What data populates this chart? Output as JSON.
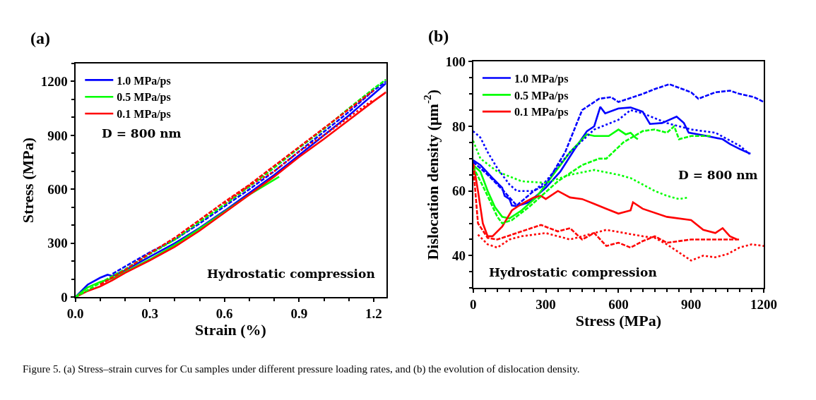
{
  "chart_data": [
    {
      "type": "line",
      "title": "(a)",
      "xlabel": "Strain (%)",
      "ylabel": "Stress (MPa)",
      "xlim": [
        0,
        1.25
      ],
      "xticks": [
        {
          "value": 0,
          "label": "0.0"
        },
        0.3,
        0.6,
        0.9,
        1.2
      ],
      "ylim": [
        0,
        1300
      ],
      "yticks": [
        0,
        300,
        600,
        900,
        1200
      ],
      "legend": "top left",
      "marker": "none",
      "annotations": [
        "D = 800 nm",
        "Hydrostatic compression",
        "Figure 5. (a) Stress–strain curves for Cu samples under different pressure loading rates, and (b) the evolution of dislocation density."
      ],
      "series": [
        {
          "name": "1.0 MPa/ps",
          "color": "#0000ff",
          "line_style": "solid",
          "x": [
            0,
            0.05,
            0.1,
            0.13,
            0.15,
            0.2,
            0.3,
            0.4,
            0.5,
            0.6,
            0.7,
            0.8,
            0.9,
            1.0,
            1.1,
            1.2,
            1.25
          ],
          "values": [
            0,
            70,
            108,
            125,
            118,
            150,
            225,
            300,
            385,
            480,
            580,
            680,
            790,
            900,
            1010,
            1130,
            1190
          ]
        },
        {
          "name": "0.5 MPa/ps",
          "color": "#00ff00",
          "line_style": "solid",
          "x": [
            0,
            0.05,
            0.1,
            0.15,
            0.2,
            0.3,
            0.4,
            0.5,
            0.6,
            0.7,
            0.82
          ],
          "values": [
            0,
            55,
            85,
            105,
            140,
            210,
            290,
            380,
            475,
            570,
            670
          ]
        },
        {
          "name": "0.1 MPa/ps",
          "color": "#ff0000",
          "line_style": "solid",
          "x": [
            0,
            0.05,
            0.1,
            0.15,
            0.2,
            0.3,
            0.4,
            0.5,
            0.6,
            0.7,
            0.8,
            0.9,
            1.0,
            1.1,
            1.2,
            1.25
          ],
          "values": [
            0,
            35,
            60,
            95,
            135,
            205,
            280,
            370,
            470,
            570,
            670,
            780,
            880,
            985,
            1090,
            1140
          ]
        },
        {
          "color": "#0000ff",
          "line_style": "dashed",
          "x": [
            0.15,
            0.2,
            0.3,
            0.4,
            0.5,
            0.6,
            0.7,
            0.8,
            0.9,
            1.0,
            1.1,
            1.2,
            1.25
          ],
          "values": [
            130,
            170,
            250,
            320,
            410,
            505,
            600,
            700,
            810,
            920,
            1030,
            1150,
            1200
          ]
        },
        {
          "color": "#00ff00",
          "line_style": "dashed",
          "x": [
            0,
            0.1,
            0.2,
            0.3,
            0.4,
            0.5,
            0.6,
            0.7,
            0.8,
            0.9,
            1.0,
            1.1,
            1.2,
            1.25
          ],
          "values": [
            0,
            80,
            155,
            240,
            320,
            420,
            515,
            615,
            720,
            830,
            935,
            1050,
            1160,
            1210
          ]
        },
        {
          "color": "#ff0000",
          "line_style": "dashed",
          "x": [
            0.1,
            0.2,
            0.3,
            0.4,
            0.5,
            0.6,
            0.7,
            0.8,
            0.9,
            1.0,
            1.1,
            1.2
          ],
          "values": [
            70,
            150,
            245,
            330,
            430,
            530,
            625,
            730,
            835,
            940,
            1045,
            1150
          ]
        },
        {
          "color": "#ff0000",
          "line_style": "dotted",
          "x": [
            0.6,
            0.7,
            0.8,
            0.9,
            1.0,
            1.1,
            1.2
          ],
          "values": [
            520,
            620,
            700,
            810,
            900,
            1000,
            1100
          ]
        }
      ]
    },
    {
      "type": "line",
      "title": "(b)",
      "xlabel": "Stress (MPa)",
      "ylabel": "Dislocation density (μm$^{-2}$)",
      "xlim": [
        0,
        1200
      ],
      "xticks": [
        0,
        300,
        600,
        900,
        1200
      ],
      "ylim": [
        30,
        100
      ],
      "yticks": [
        40,
        60,
        80,
        100
      ],
      "legend": "top left",
      "marker": "none",
      "annotations": [
        "D = 800 nm",
        "Hydrostatic compression"
      ],
      "series": [
        {
          "name": "1.0 MPa/ps",
          "color": "#0000ff",
          "line_style": "solid",
          "x": [
            0,
            30,
            80,
            120,
            130,
            150,
            160,
            180,
            230,
            300,
            360,
            420,
            470,
            500,
            525,
            545,
            600,
            650,
            700,
            730,
            780,
            840,
            870,
            890,
            950,
            1030,
            1060,
            1100,
            1145
          ],
          "values": [
            69.5,
            68,
            64,
            61,
            58.5,
            57.5,
            55.5,
            55.3,
            56.5,
            61,
            66,
            73,
            78.5,
            80,
            86,
            84,
            85.5,
            85.8,
            84.5,
            80.7,
            81,
            83,
            81,
            78,
            77.2,
            76,
            74.5,
            73,
            71.5
          ]
        },
        {
          "name": "0.5 MPa/ps",
          "color": "#00ff00",
          "line_style": "solid",
          "x": [
            0,
            30,
            60,
            90,
            120,
            150,
            200,
            260,
            320,
            400,
            470,
            500,
            560,
            600,
            630,
            650,
            670,
            680
          ],
          "values": [
            68,
            66,
            60,
            55,
            52,
            51.5,
            54,
            58,
            64,
            72,
            77.5,
            77,
            77,
            79,
            77.5,
            78,
            76.5,
            76
          ]
        },
        {
          "name": "0.1 MPa/ps",
          "color": "#ff0000",
          "line_style": "solid",
          "x": [
            0,
            20,
            40,
            60,
            80,
            120,
            160,
            200,
            250,
            280,
            300,
            350,
            400,
            450,
            500,
            550,
            600,
            650,
            660,
            700,
            800,
            900,
            950,
            1000,
            1030,
            1060,
            1090
          ],
          "values": [
            69,
            60,
            50,
            46,
            46,
            49,
            54,
            56,
            58,
            58.5,
            57.5,
            60,
            58,
            57.5,
            56,
            54.5,
            53,
            54,
            56.5,
            54.5,
            52,
            51,
            48,
            47,
            48.5,
            46,
            45
          ]
        },
        {
          "color": "#0000ff",
          "line_style": "dashed",
          "x": [
            0,
            60,
            120,
            180,
            250,
            300,
            380,
            450,
            520,
            570,
            600,
            700,
            750,
            810,
            900,
            930,
            1000,
            1060,
            1100,
            1160,
            1200
          ],
          "values": [
            69,
            65,
            60.5,
            55.5,
            60,
            62,
            72,
            85,
            88.5,
            89,
            87.5,
            90,
            91.5,
            93,
            90.5,
            88.5,
            90.5,
            91,
            90,
            89,
            87.5
          ]
        },
        {
          "color": "#0000ff",
          "line_style": "dotted",
          "x": [
            0,
            30,
            60,
            100,
            150,
            180,
            250,
            300,
            400,
            500,
            600,
            650,
            700,
            800,
            900,
            1000,
            1100,
            1140
          ],
          "values": [
            78.5,
            76.5,
            72,
            67,
            62,
            60,
            60,
            63,
            72,
            79,
            82,
            85,
            84,
            81,
            79,
            78,
            74,
            71.5
          ]
        },
        {
          "color": "#00ff00",
          "line_style": "dashed",
          "x": [
            0,
            50,
            100,
            120,
            160,
            230,
            350,
            450,
            520,
            550,
            620,
            700,
            750,
            800,
            830,
            850,
            900,
            980
          ],
          "values": [
            67.5,
            60,
            52,
            50,
            51,
            55,
            63,
            68,
            70,
            70,
            75,
            78.5,
            79,
            78,
            80,
            76,
            77,
            77
          ]
        },
        {
          "color": "#00ff00",
          "line_style": "dotted",
          "x": [
            0,
            30,
            100,
            200,
            300,
            400,
            500,
            600,
            650,
            700,
            750,
            800,
            850,
            890
          ],
          "values": [
            75.5,
            70,
            66,
            63,
            62.5,
            65,
            66.5,
            65,
            64,
            62,
            60,
            58.5,
            57.5,
            58
          ]
        },
        {
          "color": "#ff0000",
          "line_style": "dashed",
          "x": [
            0,
            20,
            60,
            100,
            200,
            280,
            350,
            400,
            450,
            500,
            550,
            600,
            650,
            700,
            750,
            800,
            900,
            1000,
            1100
          ],
          "values": [
            68,
            50,
            45.5,
            45,
            47.5,
            49.5,
            47.5,
            48.5,
            45,
            47,
            43,
            44,
            42.5,
            44.5,
            46,
            44,
            45,
            45,
            45
          ]
        },
        {
          "color": "#ff0000",
          "line_style": "dotted",
          "x": [
            20,
            60,
            100,
            150,
            200,
            300,
            400,
            550,
            700,
            750,
            800,
            900,
            950,
            1000,
            1050,
            1100,
            1150,
            1200
          ],
          "values": [
            46.5,
            43.5,
            42.5,
            45,
            46,
            47,
            45,
            48,
            46,
            45.5,
            43.5,
            38.5,
            40,
            39.5,
            40.5,
            42.5,
            43.5,
            43
          ]
        }
      ]
    }
  ]
}
